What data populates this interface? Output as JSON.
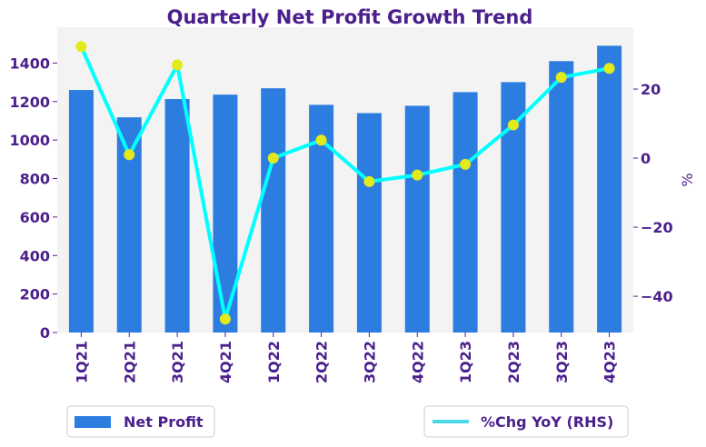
{
  "chart_data": {
    "type": "bar+line",
    "title": "Quarterly Net Profit Growth Trend",
    "categories": [
      "1Q21",
      "2Q21",
      "3Q21",
      "4Q21",
      "1Q22",
      "2Q22",
      "3Q22",
      "4Q22",
      "1Q23",
      "2Q23",
      "3Q23",
      "4Q23"
    ],
    "series": [
      {
        "name": "Net Profit",
        "type": "bar",
        "axis": "left",
        "color": "#2D7DE0",
        "values": [
          1260,
          1118,
          1213,
          1236,
          1269,
          1183,
          1140,
          1178,
          1249,
          1301,
          1410,
          1490
        ]
      },
      {
        "name": "%Chg YoY (RHS)",
        "type": "line",
        "axis": "right",
        "color": "#00FFFF",
        "marker_color": "#E3EA1C",
        "values": [
          32.3,
          1.0,
          27.0,
          -46.6,
          0.0,
          5.2,
          -6.8,
          -4.9,
          -1.8,
          9.6,
          23.4,
          26.0
        ]
      }
    ],
    "ylim": [
      0,
      1586
    ],
    "yticks": [
      0,
      200,
      400,
      600,
      800,
      1000,
      1200,
      1400
    ],
    "y2lim": [
      -50.5,
      37.9
    ],
    "y2ticks": [
      -40,
      -20,
      0,
      20
    ],
    "y2tick_labels": [
      "−40",
      "−20",
      "0",
      "20"
    ],
    "xlabel": "",
    "ylabel": "",
    "y2label": "%",
    "legend": [
      "Net Profit",
      "%Chg YoY (RHS)"
    ],
    "legend_placement": "bottom",
    "grid": false
  }
}
